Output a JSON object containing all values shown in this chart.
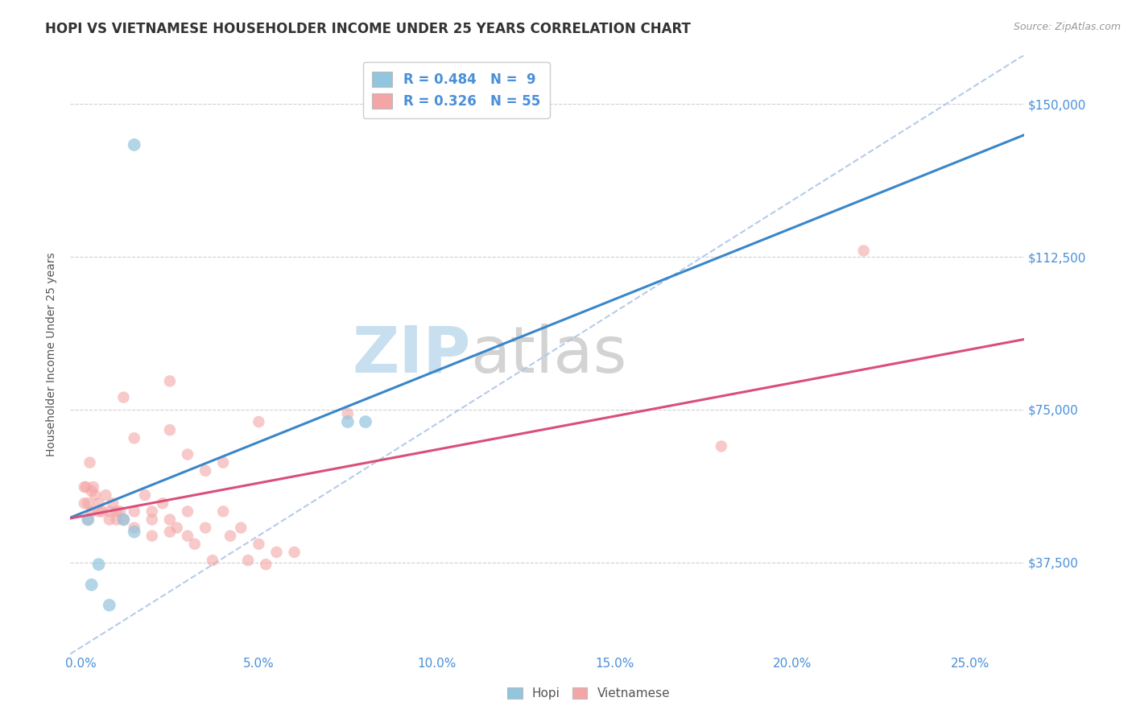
{
  "title": "HOPI VS VIETNAMESE HOUSEHOLDER INCOME UNDER 25 YEARS CORRELATION CHART",
  "source": "Source: ZipAtlas.com",
  "xlabel_ticks": [
    "0.0%",
    "5.0%",
    "10.0%",
    "15.0%",
    "20.0%",
    "25.0%"
  ],
  "xlabel_vals": [
    0.0,
    5.0,
    10.0,
    15.0,
    20.0,
    25.0
  ],
  "ylabel": "Householder Income Under 25 years",
  "yticks": [
    37500,
    75000,
    112500,
    150000
  ],
  "ytick_labels": [
    "$37,500",
    "$75,000",
    "$112,500",
    "$150,000"
  ],
  "ylim": [
    15000,
    162000
  ],
  "xlim": [
    -0.3,
    26.5
  ],
  "hopi_R": 0.484,
  "hopi_N": 9,
  "viet_R": 0.326,
  "viet_N": 55,
  "hopi_color": "#92c5de",
  "viet_color": "#f4a6a6",
  "hopi_scatter": [
    [
      0.2,
      48000
    ],
    [
      0.5,
      37000
    ],
    [
      0.8,
      27000
    ],
    [
      1.2,
      48000
    ],
    [
      1.5,
      45000
    ],
    [
      1.5,
      140000
    ],
    [
      7.5,
      72000
    ],
    [
      8.0,
      72000
    ],
    [
      0.3,
      32000
    ]
  ],
  "viet_scatter": [
    [
      0.1,
      56000
    ],
    [
      0.1,
      52000
    ],
    [
      0.15,
      56000
    ],
    [
      0.2,
      52000
    ],
    [
      0.2,
      48000
    ],
    [
      0.25,
      62000
    ],
    [
      0.3,
      55000
    ],
    [
      0.3,
      50000
    ],
    [
      0.35,
      56000
    ],
    [
      0.4,
      54000
    ],
    [
      0.5,
      50000
    ],
    [
      0.5,
      52000
    ],
    [
      0.6,
      50000
    ],
    [
      0.7,
      54000
    ],
    [
      0.8,
      50000
    ],
    [
      0.8,
      48000
    ],
    [
      0.9,
      52000
    ],
    [
      1.0,
      50000
    ],
    [
      1.0,
      48000
    ],
    [
      1.1,
      50000
    ],
    [
      1.2,
      48000
    ],
    [
      1.5,
      50000
    ],
    [
      1.5,
      46000
    ],
    [
      2.0,
      48000
    ],
    [
      2.0,
      50000
    ],
    [
      2.0,
      44000
    ],
    [
      2.5,
      48000
    ],
    [
      2.5,
      45000
    ],
    [
      3.0,
      50000
    ],
    [
      3.0,
      44000
    ],
    [
      3.5,
      46000
    ],
    [
      4.0,
      50000
    ],
    [
      4.5,
      46000
    ],
    [
      5.0,
      42000
    ],
    [
      5.5,
      40000
    ],
    [
      6.0,
      40000
    ],
    [
      1.2,
      78000
    ],
    [
      1.5,
      68000
    ],
    [
      2.5,
      82000
    ],
    [
      2.5,
      70000
    ],
    [
      3.0,
      64000
    ],
    [
      5.0,
      72000
    ],
    [
      3.5,
      60000
    ],
    [
      4.0,
      62000
    ],
    [
      7.5,
      74000
    ],
    [
      1.8,
      54000
    ],
    [
      2.3,
      52000
    ],
    [
      2.7,
      46000
    ],
    [
      3.2,
      42000
    ],
    [
      3.7,
      38000
    ],
    [
      4.2,
      44000
    ],
    [
      4.7,
      38000
    ],
    [
      5.2,
      37000
    ],
    [
      18.0,
      66000
    ],
    [
      22.0,
      114000
    ]
  ],
  "hopi_line_color": "#3a86c8",
  "viet_line_color": "#d94f7a",
  "diag_line_color": "#aec6e8",
  "diag_line_style": "--",
  "background_color": "#ffffff",
  "grid_color": "#d0d0d0",
  "title_color": "#333333",
  "label_color": "#4a90d9",
  "watermark_zip": "ZIP",
  "watermark_atlas": "atlas",
  "watermark_color_zip": "#c8dff0",
  "watermark_color_atlas": "#c8c8c8"
}
